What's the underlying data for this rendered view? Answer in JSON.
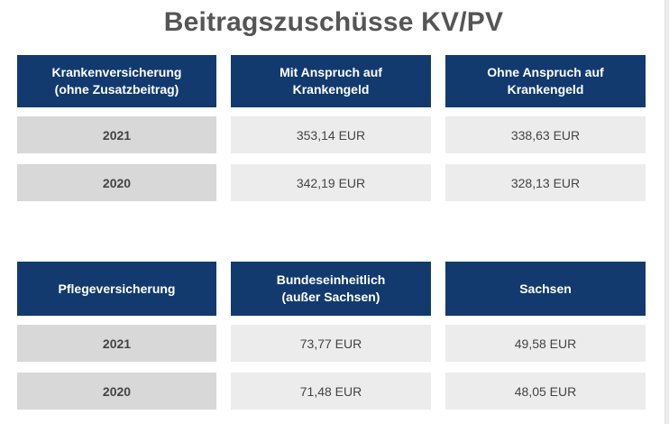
{
  "title": "Beitragszuschüsse KV/PV",
  "kv_table": {
    "headers": [
      "Krankenversicherung\n(ohne Zusatzbeitrag)",
      "Mit Anspruch auf\nKrankengeld",
      "Ohne Anspruch auf\nKrankengeld"
    ],
    "rows": [
      {
        "year": "2021",
        "with": "353,14 EUR",
        "without": "338,63 EUR"
      },
      {
        "year": "2020",
        "with": "342,19 EUR",
        "without": "328,13 EUR"
      }
    ]
  },
  "pv_table": {
    "headers": [
      "Pflegeversicherung",
      "Bundeseinheitlich\n(außer Sachsen)",
      "Sachsen"
    ],
    "rows": [
      {
        "year": "2021",
        "federal": "73,77 EUR",
        "saxony": "49,58 EUR"
      },
      {
        "year": "2020",
        "federal": "71,48 EUR",
        "saxony": "48,05 EUR"
      }
    ]
  },
  "colors": {
    "header_bg": "#123a6e",
    "year_bg": "#d8d8d8",
    "value_bg": "#ececec",
    "title_text": "#555555"
  }
}
